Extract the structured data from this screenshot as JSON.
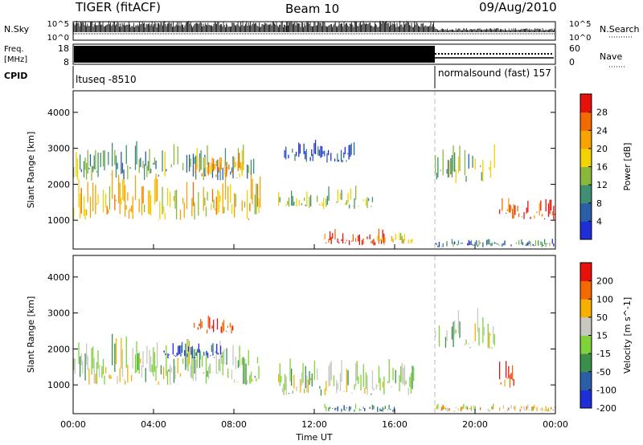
{
  "header": {
    "radar": "TIGER (fitACF)",
    "beam": "Beam 10",
    "date": "09/Aug/2010"
  },
  "strips": {
    "nsky_label": "N.Sky",
    "nsky_ticks": [
      "10^5",
      "10^0"
    ],
    "nsearch_label": "N.Search",
    "nsearch_ticks": [
      "10^5",
      "10^0"
    ],
    "freq_label_1": "Freq.",
    "freq_label_2": "[MHz]",
    "freq_ticks": [
      "18",
      "8"
    ],
    "nave_label": "Nave",
    "nave_ticks": [
      "60",
      "0"
    ],
    "cpid_label": "CPID",
    "cpid_segments": [
      "ltuseq -8510",
      "normalsound (fast) 157"
    ]
  },
  "chart_data": [
    {
      "type": "heatmap",
      "panel": "power",
      "xlabel": "Time UT",
      "ylabel": "Slant Range [km]",
      "x_ticks": [
        "00:00",
        "04:00",
        "08:00",
        "12:00",
        "16:00",
        "20:00",
        "00:00"
      ],
      "xlim_hours": [
        0,
        24
      ],
      "y_ticks": [
        1000,
        2000,
        3000,
        4000
      ],
      "ylim": [
        200,
        4600
      ],
      "colorbar": {
        "label": "Power [dB]",
        "ticks": [
          "4",
          "8",
          "12",
          "16",
          "20",
          "24",
          "28"
        ],
        "range": [
          0,
          30
        ],
        "colors": [
          "#1f2fd8",
          "#2a5fa8",
          "#3f8f72",
          "#8ab83a",
          "#f2d200",
          "#f7a300",
          "#f36a00",
          "#e8100a"
        ]
      },
      "mode_change_hour": 18.0,
      "regions": [
        {
          "t": [
            0.0,
            9.3
          ],
          "r": [
            1000,
            2500
          ],
          "level": 0.62
        },
        {
          "t": [
            0.0,
            9.0
          ],
          "r": [
            2100,
            3300
          ],
          "level": 0.35
        },
        {
          "t": [
            6.0,
            8.5
          ],
          "r": [
            2200,
            2900
          ],
          "level": 0.7
        },
        {
          "t": [
            10.2,
            15.0
          ],
          "r": [
            1300,
            2000
          ],
          "level": 0.45
        },
        {
          "t": [
            12.5,
            15.5
          ],
          "r": [
            300,
            800
          ],
          "level": 0.92
        },
        {
          "t": [
            15.0,
            17.0
          ],
          "r": [
            300,
            700
          ],
          "level": 0.6
        },
        {
          "t": [
            10.5,
            14.0
          ],
          "r": [
            2600,
            3300
          ],
          "level": 0.15
        },
        {
          "t": [
            18.0,
            21.0
          ],
          "r": [
            2000,
            3200
          ],
          "level": 0.4
        },
        {
          "t": [
            21.2,
            24.0
          ],
          "r": [
            1000,
            1700
          ],
          "level": 0.85
        },
        {
          "t": [
            18.0,
            24.0
          ],
          "r": [
            250,
            500
          ],
          "level": 0.25
        }
      ]
    },
    {
      "type": "heatmap",
      "panel": "velocity",
      "xlabel": "Time UT",
      "ylabel": "Slant Range [km]",
      "x_ticks": [
        "00:00",
        "04:00",
        "08:00",
        "12:00",
        "16:00",
        "20:00",
        "00:00"
      ],
      "xlim_hours": [
        0,
        24
      ],
      "y_ticks": [
        1000,
        2000,
        3000,
        4000
      ],
      "ylim": [
        200,
        4600
      ],
      "colorbar": {
        "label": "Velocity [m s^-1]",
        "ticks": [
          "200",
          "100",
          "50",
          "15",
          "-15",
          "-50",
          "-100",
          "-200"
        ],
        "range": [
          -250,
          250
        ],
        "colors": [
          "#1f2fd8",
          "#2a5fa8",
          "#3a8f4a",
          "#7fd23a",
          "#c8c8c0",
          "#f7b000",
          "#f36a00",
          "#e8100a"
        ]
      },
      "mode_change_hour": 18.0,
      "regions": [
        {
          "t": [
            0.0,
            9.3
          ],
          "r": [
            1000,
            2500
          ],
          "level": 0.5
        },
        {
          "t": [
            6.0,
            8.0
          ],
          "r": [
            2400,
            3000
          ],
          "level": 0.9
        },
        {
          "t": [
            4.5,
            7.5
          ],
          "r": [
            1700,
            2300
          ],
          "level": 0.1
        },
        {
          "t": [
            10.2,
            17.0
          ],
          "r": [
            700,
            1800
          ],
          "level": 0.5
        },
        {
          "t": [
            12.5,
            16.0
          ],
          "r": [
            250,
            500
          ],
          "level": 0.25
        },
        {
          "t": [
            18.0,
            21.0
          ],
          "r": [
            2000,
            3200
          ],
          "level": 0.48
        },
        {
          "t": [
            21.2,
            22.0
          ],
          "r": [
            900,
            1800
          ],
          "level": 0.85
        },
        {
          "t": [
            18.0,
            24.0
          ],
          "r": [
            250,
            500
          ],
          "level": 0.65
        }
      ]
    }
  ]
}
